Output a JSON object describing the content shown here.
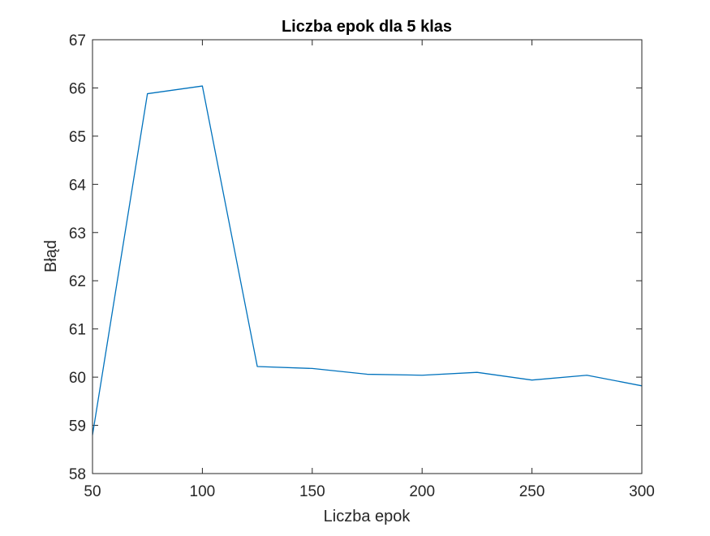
{
  "chart_data": {
    "type": "line",
    "title": "Liczba epok dla 5 klas",
    "xlabel": "Liczba epok",
    "ylabel": "Błąd",
    "xlim": [
      50,
      300
    ],
    "ylim": [
      58,
      67
    ],
    "xticks": [
      "50",
      "100",
      "150",
      "200",
      "250",
      "300"
    ],
    "yticks": [
      "58",
      "59",
      "60",
      "61",
      "62",
      "63",
      "64",
      "65",
      "66",
      "67"
    ],
    "grid": false,
    "series": [
      {
        "x": [
          50,
          75,
          100,
          125,
          150,
          175,
          200,
          225,
          250,
          275,
          300
        ],
        "y": [
          58.8,
          65.88,
          66.04,
          60.22,
          60.18,
          60.06,
          60.04,
          60.1,
          59.94,
          60.04,
          59.82
        ],
        "color": "#0072BD"
      }
    ]
  }
}
